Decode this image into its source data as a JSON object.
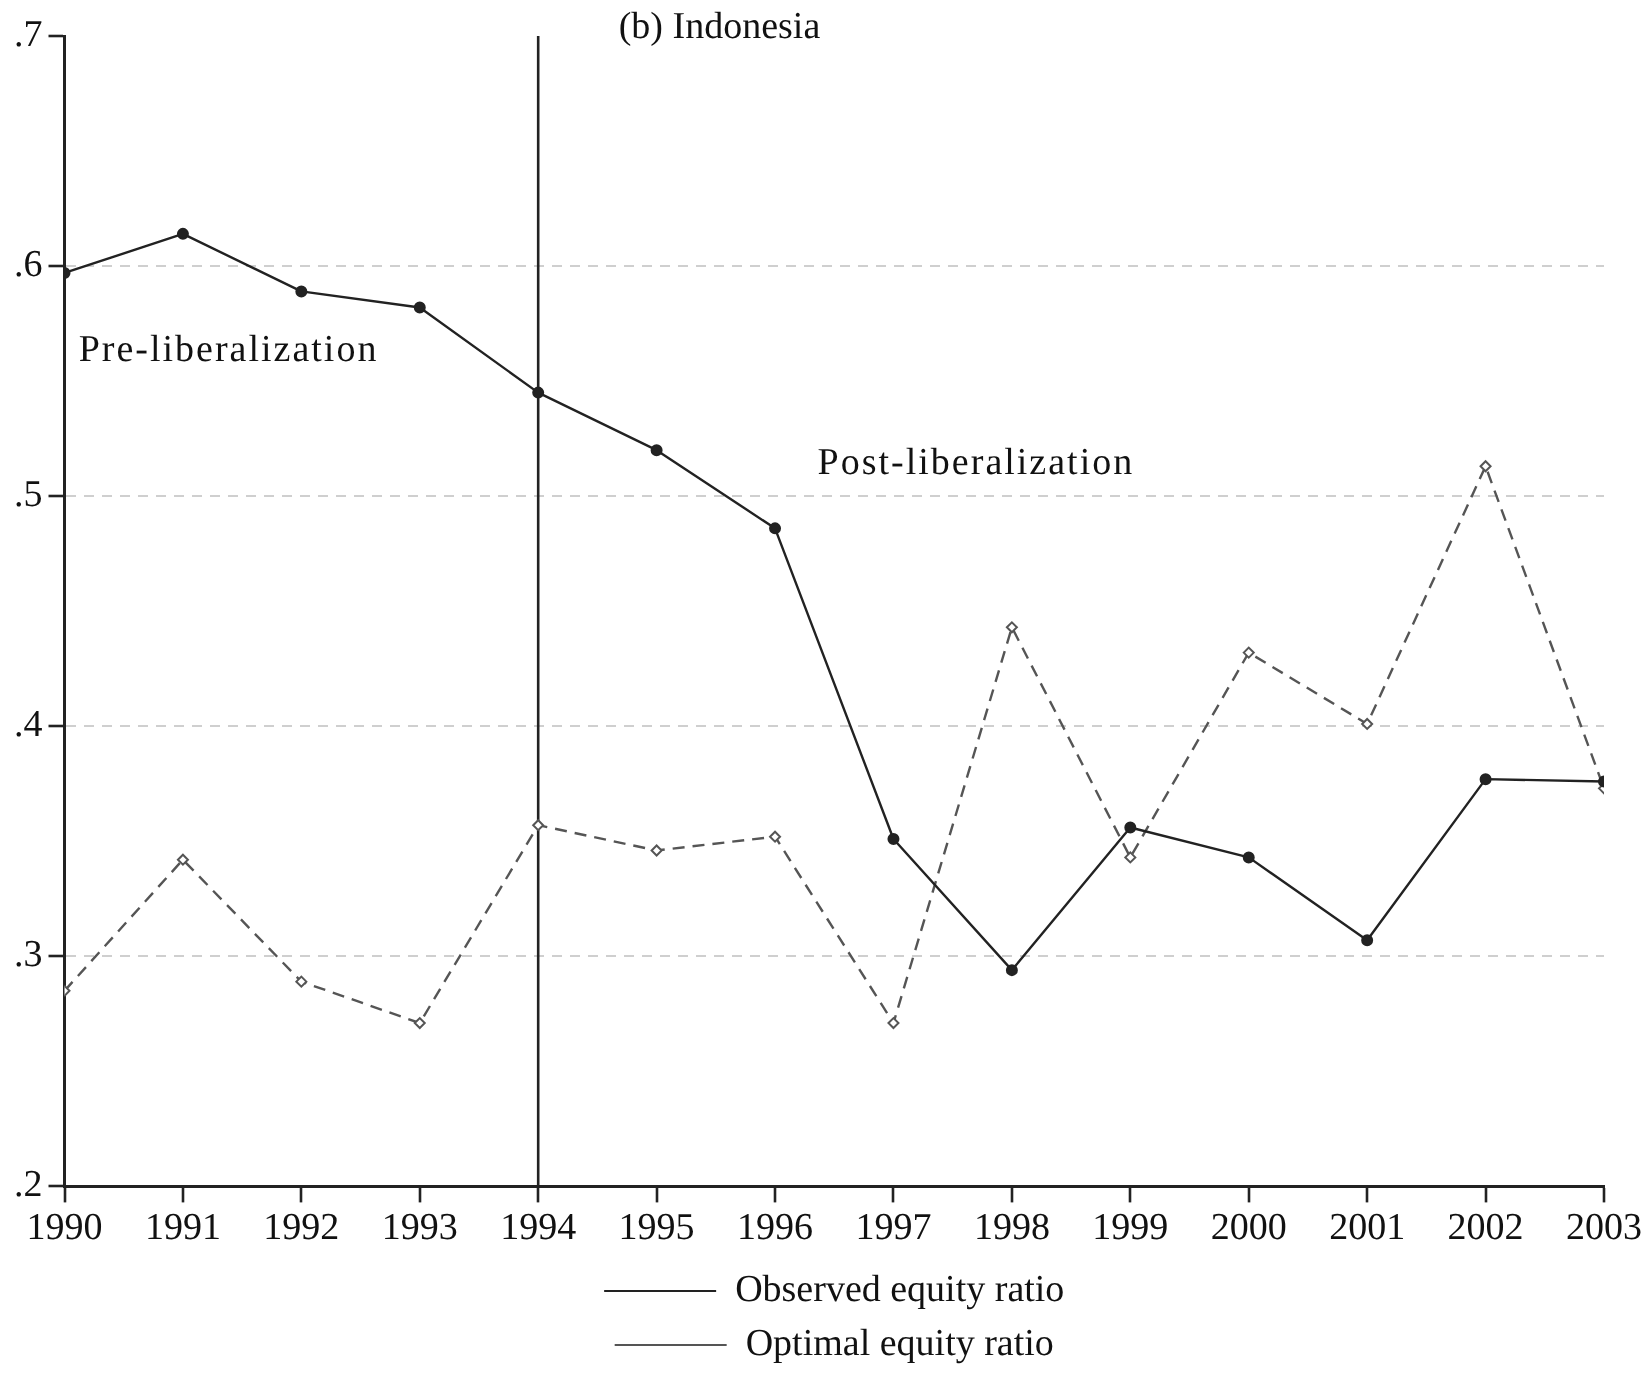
{
  "chart_data": {
    "type": "line",
    "title": "(b) Indonesia",
    "annotations": [
      "Pre-liberalization",
      "Post-liberalization"
    ],
    "x": [
      1990,
      1991,
      1992,
      1993,
      1994,
      1995,
      1996,
      1997,
      1998,
      1999,
      2000,
      2001,
      2002,
      2003
    ],
    "series": [
      {
        "name": "Observed equity ratio",
        "color": "#222222",
        "line_style": "solid",
        "marker": "circle",
        "values": [
          0.597,
          0.614,
          0.589,
          0.582,
          0.545,
          0.52,
          0.486,
          0.351,
          0.294,
          0.356,
          0.343,
          0.307,
          0.377,
          0.376
        ]
      },
      {
        "name": "Optimal equity ratio",
        "color": "#555555",
        "line_style": "dashed",
        "marker": "diamond",
        "values": [
          0.285,
          0.342,
          0.289,
          0.271,
          0.357,
          0.346,
          0.352,
          0.271,
          0.443,
          0.343,
          0.432,
          0.401,
          0.513,
          0.373
        ]
      }
    ],
    "xlim": [
      1990,
      2003
    ],
    "xticks": [
      1990,
      1991,
      1992,
      1993,
      1994,
      1995,
      1996,
      1997,
      1998,
      1999,
      2000,
      2001,
      2002,
      2003
    ],
    "ylim": [
      0.2,
      0.7
    ],
    "yticks": [
      {
        "value": 0.2,
        "label": ".2"
      },
      {
        "value": 0.3,
        "label": ".3"
      },
      {
        "value": 0.4,
        "label": ".4"
      },
      {
        "value": 0.5,
        "label": ".5"
      },
      {
        "value": 0.6,
        "label": ".6"
      },
      {
        "value": 0.7,
        "label": ".7"
      }
    ],
    "ref_lines": [
      {
        "axis": "x",
        "value": 1994,
        "color": "#222222"
      }
    ],
    "grid": "y",
    "legend": "bottom"
  }
}
